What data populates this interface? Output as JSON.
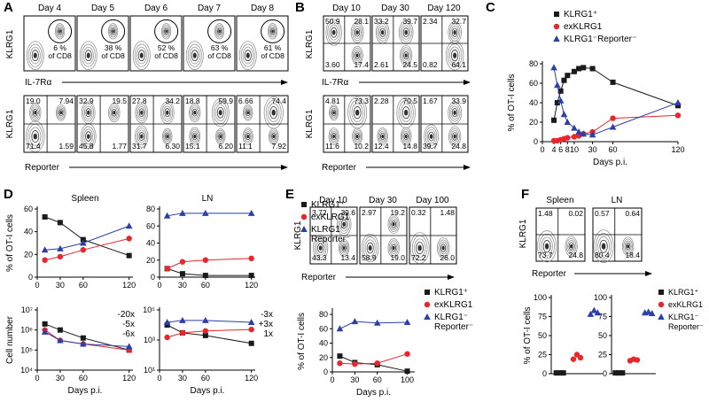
{
  "panel_labels": [
    "A",
    "B",
    "C",
    "D",
    "E",
    "F"
  ],
  "A": {
    "days": [
      "Day 4",
      "Day 5",
      "Day 6",
      "Day 7",
      "Day 8"
    ],
    "gates": [
      {
        "percent": "6 %",
        "of": "of CD8"
      },
      {
        "percent": "38 %",
        "of": "of CD8"
      },
      {
        "percent": "52 %",
        "of": "of CD8"
      },
      {
        "percent": "63 %",
        "of": "of CD8"
      },
      {
        "percent": "61 %",
        "of": "of CD8"
      }
    ],
    "quadrants": [
      [
        "19.0",
        "7.94",
        "71.4",
        "1.59"
      ],
      [
        "32.9",
        "19.5",
        "45.8",
        "1.77"
      ],
      [
        "27.8",
        "34.2",
        "31.7",
        "6.30"
      ],
      [
        "18.8",
        "59.9",
        "15.1",
        "6.20"
      ],
      [
        "6.66",
        "74.4",
        "11.1",
        "7.92"
      ]
    ],
    "y_label_top": "KLRG1",
    "x_label_top": "IL-7Rα",
    "y_label_bottom": "KLRG1",
    "x_label_bottom": "Reporter"
  },
  "B": {
    "days": [
      "Day 10",
      "Day 30",
      "Day 120"
    ],
    "quadrants_top": [
      [
        "50.9",
        "28.1",
        "3.60",
        "17.4"
      ],
      [
        "33.2",
        "39.7",
        "2.61",
        "24.5"
      ],
      [
        "2.34",
        "32.7",
        "0.82",
        "64.1"
      ]
    ],
    "quadrants_bottom": [
      [
        "4.81",
        "73.3",
        "11.6",
        "10.2"
      ],
      [
        "2.28",
        "70.5",
        "12.4",
        "14.8"
      ],
      [
        "1.67",
        "33.9",
        "39.7",
        "24.8"
      ]
    ],
    "y_label_top": "KLRG1",
    "x_label_top": "IL-7Rα",
    "y_label_bottom": "KLRG1",
    "x_label_bottom": "Reporter"
  },
  "E_flow": {
    "days": [
      "Day 10",
      "Day 30",
      "Day 100"
    ],
    "quadrants": [
      [
        "3.72",
        "39.6",
        "43.3",
        "13.4"
      ],
      [
        "2.97",
        "19.2",
        "58.9",
        "19.0"
      ],
      [
        "0.32",
        "1.48",
        "72.2",
        "26.0"
      ]
    ],
    "y_label": "KLRG1",
    "x_label": "Reporter"
  },
  "F_flow": {
    "titles": [
      "Spleen",
      "LN"
    ],
    "quadrants": [
      [
        "1.48",
        "0.02",
        "73.7",
        "24.8"
      ],
      [
        "0.57",
        "0.64",
        "80.4",
        "18.4"
      ]
    ],
    "y_label": "KLRG1",
    "x_label": "Reporter"
  },
  "chart_data": [
    {
      "type": "line",
      "ylabel": "% of OT-I cells",
      "xlabel": "Days p.i.",
      "x": [
        4,
        5,
        6,
        7,
        8,
        10,
        15,
        20,
        30,
        60,
        120
      ],
      "xlim": [
        0,
        120
      ],
      "xticks": [
        0,
        4,
        6,
        8,
        10,
        30,
        60,
        120
      ],
      "ylim": [
        0,
        80
      ],
      "yticks": [
        0,
        20,
        40,
        60,
        80
      ],
      "series": [
        {
          "name": "KLRG1⁺",
          "color": "#1a1a1a",
          "marker": "square",
          "values": [
            22,
            40,
            52,
            63,
            68,
            72,
            75,
            76,
            75,
            61,
            37
          ]
        },
        {
          "name": "exKLRG1",
          "color": "#e8262b",
          "marker": "circle",
          "values": [
            1,
            1,
            2,
            3,
            4,
            5,
            6,
            8,
            10,
            24,
            27
          ]
        },
        {
          "name": "KLRG1⁻Reporter⁻",
          "color": "#2b3fa8",
          "marker": "triangle",
          "values": [
            76,
            58,
            42,
            28,
            20,
            14,
            10,
            8,
            7,
            15,
            40
          ]
        }
      ]
    },
    {
      "type": "line",
      "title": "Spleen",
      "ylabel": "% of OT-I cells",
      "x": [
        10,
        30,
        60,
        120
      ],
      "xlim": [
        0,
        125
      ],
      "xticks": [
        0,
        30,
        60,
        120
      ],
      "ylim": [
        0,
        60
      ],
      "yticks": [
        0,
        20,
        40,
        60
      ],
      "series": [
        {
          "name": "KLRG1⁺",
          "color": "#1a1a1a",
          "marker": "square",
          "values": [
            53,
            48,
            33,
            19
          ]
        },
        {
          "name": "exKLRG1",
          "color": "#e8262b",
          "marker": "circle",
          "values": [
            15,
            18,
            24,
            34
          ]
        },
        {
          "name": "KLRG1⁻ Reporter⁻",
          "color": "#2b3fa8",
          "marker": "triangle",
          "values": [
            24,
            25,
            30,
            45
          ]
        }
      ]
    },
    {
      "type": "line",
      "title": "LN",
      "x": [
        10,
        30,
        60,
        120
      ],
      "xlim": [
        0,
        125
      ],
      "xticks": [
        0,
        30,
        60,
        120
      ],
      "ylim": [
        0,
        80
      ],
      "yticks": [
        0,
        20,
        40,
        60,
        80
      ],
      "series": [
        {
          "color": "#1a1a1a",
          "marker": "square",
          "values": [
            10,
            4,
            2,
            2
          ]
        },
        {
          "color": "#e8262b",
          "marker": "circle",
          "values": [
            10,
            18,
            20,
            22
          ]
        },
        {
          "color": "#2b3fa8",
          "marker": "triangle",
          "values": [
            72,
            75,
            75,
            75
          ]
        }
      ]
    },
    {
      "type": "line",
      "ylabel": "Cell number",
      "xlabel": "Days p.i.",
      "log": true,
      "x": [
        10,
        30,
        60,
        120
      ],
      "xlim": [
        0,
        125
      ],
      "xticks": [
        0,
        30,
        60,
        120
      ],
      "ylim": [
        10000,
        10000000
      ],
      "yticks": [
        {
          "value": 10000,
          "label": "10⁴"
        },
        {
          "value": 100000,
          "label": "10⁵"
        },
        {
          "value": 1000000,
          "label": "10⁶"
        },
        {
          "value": 10000000,
          "label": "10⁷"
        }
      ],
      "annotations": [
        {
          "text": "-20x",
          "color": "#1a1a1a"
        },
        {
          "text": "-5x",
          "color": "#e8262b"
        },
        {
          "text": "-6x",
          "color": "#2b3fa8"
        }
      ],
      "series": [
        {
          "color": "#1a1a1a",
          "marker": "square",
          "values": [
            2000000,
            1000000,
            400000,
            100000
          ]
        },
        {
          "color": "#e8262b",
          "marker": "circle",
          "values": [
            1000000,
            300000,
            200000,
            100000
          ]
        },
        {
          "color": "#2b3fa8",
          "marker": "triangle",
          "values": [
            800000,
            300000,
            200000,
            150000
          ]
        }
      ]
    },
    {
      "type": "line",
      "xlabel": "Days p.i.",
      "log": true,
      "x": [
        10,
        30,
        60,
        120
      ],
      "xlim": [
        0,
        125
      ],
      "xticks": [
        0,
        30,
        60,
        120
      ],
      "ylim": [
        10,
        100000
      ],
      "yticks": [
        {
          "value": 10,
          "label": "10¹"
        },
        {
          "value": 1000,
          "label": "10³"
        },
        {
          "value": 100000,
          "label": "10⁵"
        }
      ],
      "annotations": [
        {
          "text": "-3x",
          "color": "#1a1a1a"
        },
        {
          "text": "+3x",
          "color": "#e8262b"
        },
        {
          "text": "1x",
          "color": "#2b3fa8"
        }
      ],
      "series": [
        {
          "color": "#1a1a1a",
          "marker": "square",
          "values": [
            10000,
            3000,
            2000,
            600
          ]
        },
        {
          "color": "#e8262b",
          "marker": "circle",
          "values": [
            1500,
            3000,
            4000,
            5000
          ]
        },
        {
          "color": "#2b3fa8",
          "marker": "triangle",
          "values": [
            15000,
            20000,
            20000,
            15000
          ]
        }
      ]
    },
    {
      "type": "line",
      "ylabel": "% of OT-I cells",
      "xlabel": "Days p.i.",
      "x": [
        10,
        30,
        60,
        100
      ],
      "xlim": [
        0,
        110
      ],
      "xticks": [
        0,
        30,
        60,
        100
      ],
      "ylim": [
        0,
        85
      ],
      "yticks": [
        0,
        20,
        40,
        60,
        80
      ],
      "series": [
        {
          "name": "KLRG1⁺",
          "color": "#1a1a1a",
          "marker": "square",
          "values": [
            22,
            13,
            10,
            1
          ]
        },
        {
          "name": "exKLRG1",
          "color": "#e8262b",
          "marker": "circle",
          "values": [
            12,
            11,
            12,
            25
          ]
        },
        {
          "name": "KLRG1⁻ Reporter⁻",
          "color": "#2b3fa8",
          "marker": "triangle",
          "values": [
            60,
            70,
            68,
            69
          ]
        }
      ]
    },
    {
      "type": "dot",
      "ylabel": "% of OT-I cells",
      "ylim": [
        0,
        100
      ],
      "yticks": [
        0,
        25,
        50,
        75,
        100
      ],
      "series": [
        {
          "name": "KLRG1⁺",
          "color": "#1a1a1a",
          "marker": "square",
          "values": [
            1,
            1,
            1
          ]
        },
        {
          "name": "exKLRG1",
          "color": "#e8262b",
          "marker": "circle",
          "values": [
            19,
            25,
            21
          ]
        },
        {
          "name": "KLRG1⁻ Reporter⁻",
          "color": "#2b3fa8",
          "marker": "triangle",
          "values": [
            78,
            83,
            80
          ]
        }
      ]
    },
    {
      "type": "dot",
      "ylim": [
        0,
        100
      ],
      "yticks": [
        0,
        25,
        50,
        75,
        100
      ],
      "series": [
        {
          "color": "#1a1a1a",
          "marker": "square",
          "values": [
            1,
            1,
            1
          ]
        },
        {
          "color": "#e8262b",
          "marker": "circle",
          "values": [
            17,
            19,
            18
          ]
        },
        {
          "color": "#2b3fa8",
          "marker": "triangle",
          "values": [
            80,
            81,
            79
          ]
        }
      ]
    }
  ]
}
